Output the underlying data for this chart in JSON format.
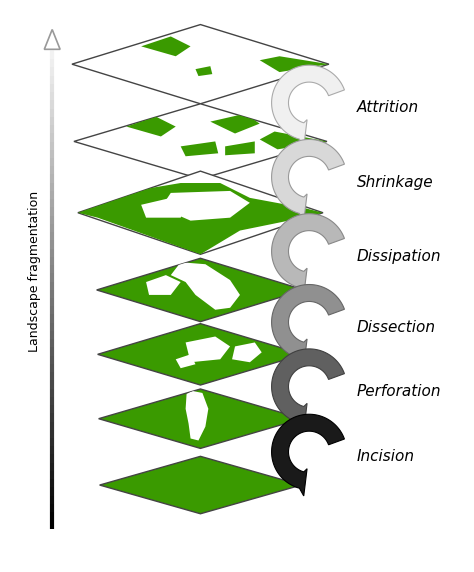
{
  "stages": [
    {
      "name": "Attrition",
      "arrow_fill": "#f0f0f0",
      "arrow_edge": "#aaaaaa"
    },
    {
      "name": "Shrinkage",
      "arrow_fill": "#d8d8d8",
      "arrow_edge": "#999999"
    },
    {
      "name": "Dissipation",
      "arrow_fill": "#b8b8b8",
      "arrow_edge": "#888888"
    },
    {
      "name": "Dissection",
      "arrow_fill": "#909090",
      "arrow_edge": "#666666"
    },
    {
      "name": "Perforation",
      "arrow_fill": "#606060",
      "arrow_edge": "#404040"
    },
    {
      "name": "Incision",
      "arrow_fill": "#1a1a1a",
      "arrow_edge": "#000000"
    }
  ],
  "green": "#3a9a00",
  "white": "#ffffff",
  "border": "#444444",
  "bg": "#ffffff",
  "fig_w": 4.74,
  "fig_h": 5.72,
  "dpi": 100
}
